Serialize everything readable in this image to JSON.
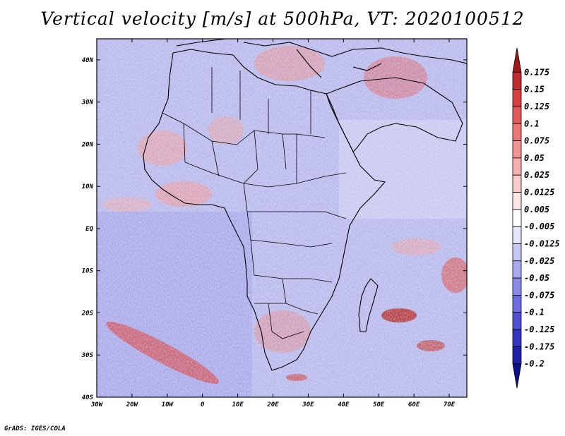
{
  "title": "Vertical velocity [m/s] at 500hPa, VT: 2020100512",
  "credit": "GrADS: IGES/COLA",
  "map": {
    "lat_labels": [
      "40N",
      "30N",
      "20N",
      "10N",
      "EQ",
      "10S",
      "20S",
      "30S",
      "40S"
    ],
    "lat_values": [
      40,
      30,
      20,
      10,
      0,
      -10,
      -20,
      -30,
      -40
    ],
    "lon_labels": [
      "30W",
      "20W",
      "10W",
      "0",
      "10E",
      "20E",
      "30E",
      "40E",
      "50E",
      "60E",
      "70E"
    ],
    "lon_values": [
      -30,
      -20,
      -10,
      0,
      10,
      20,
      30,
      40,
      50,
      60,
      70
    ],
    "lon_range": [
      -30,
      75
    ],
    "lat_range": [
      -40,
      45
    ]
  },
  "colorbar": {
    "labels": [
      "0.175",
      "0.15",
      "0.125",
      "0.1",
      "0.075",
      "0.05",
      "0.025",
      "0.0125",
      "0.005",
      "-0.005",
      "-0.0125",
      "-0.025",
      "-0.05",
      "-0.075",
      "-0.1",
      "-0.125",
      "-0.175",
      "-0.2"
    ],
    "colors": [
      "#a01818",
      "#c02c2c",
      "#d84040",
      "#e45a5a",
      "#ec7878",
      "#f29494",
      "#f6b0b0",
      "#f9cccc",
      "#fce6e6",
      "#ffffff",
      "#e6e6fc",
      "#c8c8f6",
      "#aaaaf0",
      "#8c8ce8",
      "#6e6ee0",
      "#5050d4",
      "#3434c0",
      "#2020a8",
      "#10108c"
    ]
  }
}
